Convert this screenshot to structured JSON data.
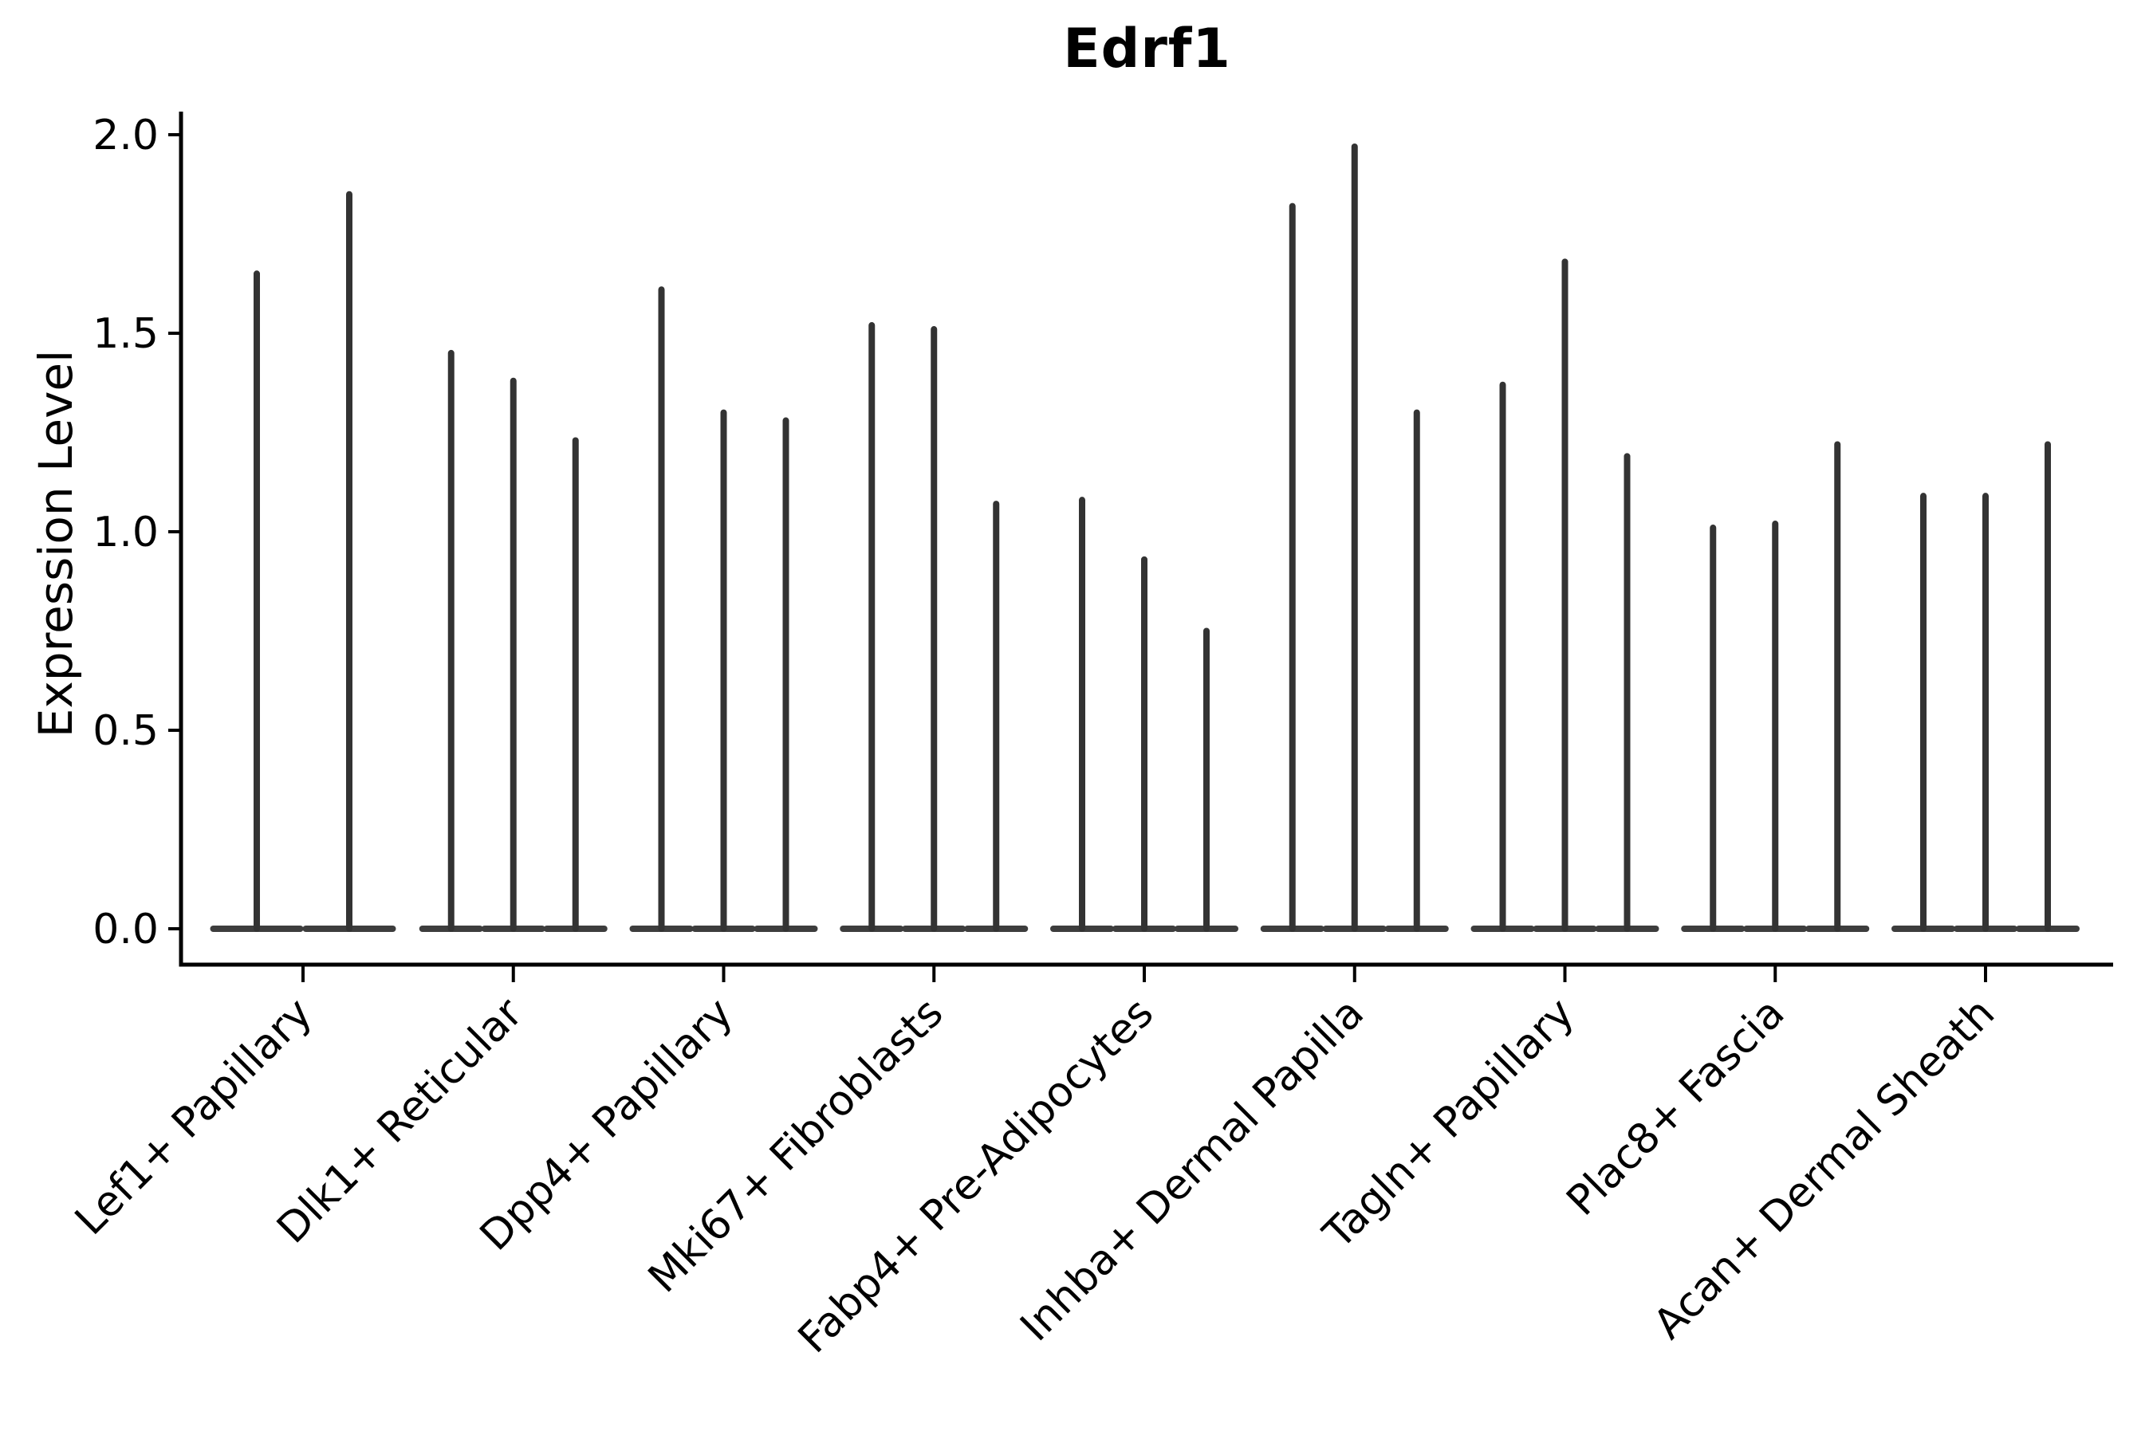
{
  "title": "Edrf1",
  "y_axis": {
    "label": "Expression Level",
    "tick_labels": [
      "0.0",
      "0.5",
      "1.0",
      "1.5",
      "2.0"
    ]
  },
  "x_axis": {
    "tick_labels": [
      "Lef1+ Papillary",
      "Dlk1+ Reticular",
      "Dpp4+ Papillary",
      "Mki67+ Fibroblasts",
      "Fabp4+ Pre-Adipocytes",
      "Inhba+ Dermal Papilla",
      "Tagln+ Papillary",
      "Plac8+ Fascia",
      "Acan+ Dermal Sheath"
    ]
  },
  "colors": {
    "violin": "#333333",
    "violin_base": "#3d3d3d",
    "axis": "#000000",
    "text": "#000000",
    "background": "#ffffff"
  },
  "chart_data": {
    "type": "violin",
    "title": "Edrf1",
    "xlabel": "",
    "ylabel": "Expression Level",
    "ylim": [
      -0.09,
      2.07
    ],
    "yticks": [
      0.0,
      0.5,
      1.0,
      1.5,
      2.0
    ],
    "grid": false,
    "legend": "none",
    "description": "Violin plot of Edrf1 expression per fibroblast cluster; each category holds 2-3 extremely narrow violins (spikes) whose mass sits at 0 with a thin spike up to the maximum expression value.",
    "categories": [
      "Lef1+ Papillary",
      "Dlk1+ Reticular",
      "Dpp4+ Papillary",
      "Mki67+ Fibroblasts",
      "Fabp4+ Pre-Adipocytes",
      "Inhba+ Dermal Papilla",
      "Tagln+ Papillary",
      "Plac8+ Fascia",
      "Acan+ Dermal Sheath"
    ],
    "groups": [
      {
        "category": "Lef1+ Papillary",
        "spike_max_values": [
          1.65,
          1.85
        ]
      },
      {
        "category": "Dlk1+ Reticular",
        "spike_max_values": [
          1.45,
          1.38,
          1.23
        ]
      },
      {
        "category": "Dpp4+ Papillary",
        "spike_max_values": [
          1.61,
          1.3,
          1.28
        ]
      },
      {
        "category": "Mki67+ Fibroblasts",
        "spike_max_values": [
          1.52,
          1.51,
          1.07
        ]
      },
      {
        "category": "Fabp4+ Pre-Adipocytes",
        "spike_max_values": [
          1.08,
          0.93,
          0.75
        ]
      },
      {
        "category": "Inhba+ Dermal Papilla",
        "spike_max_values": [
          1.82,
          1.97,
          1.3
        ]
      },
      {
        "category": "Tagln+ Papillary",
        "spike_max_values": [
          1.37,
          1.68,
          1.19
        ]
      },
      {
        "category": "Plac8+ Fascia",
        "spike_max_values": [
          1.01,
          1.02,
          1.22
        ]
      },
      {
        "category": "Acan+ Dermal Sheath",
        "spike_max_values": [
          1.09,
          1.09,
          1.22
        ]
      }
    ]
  }
}
